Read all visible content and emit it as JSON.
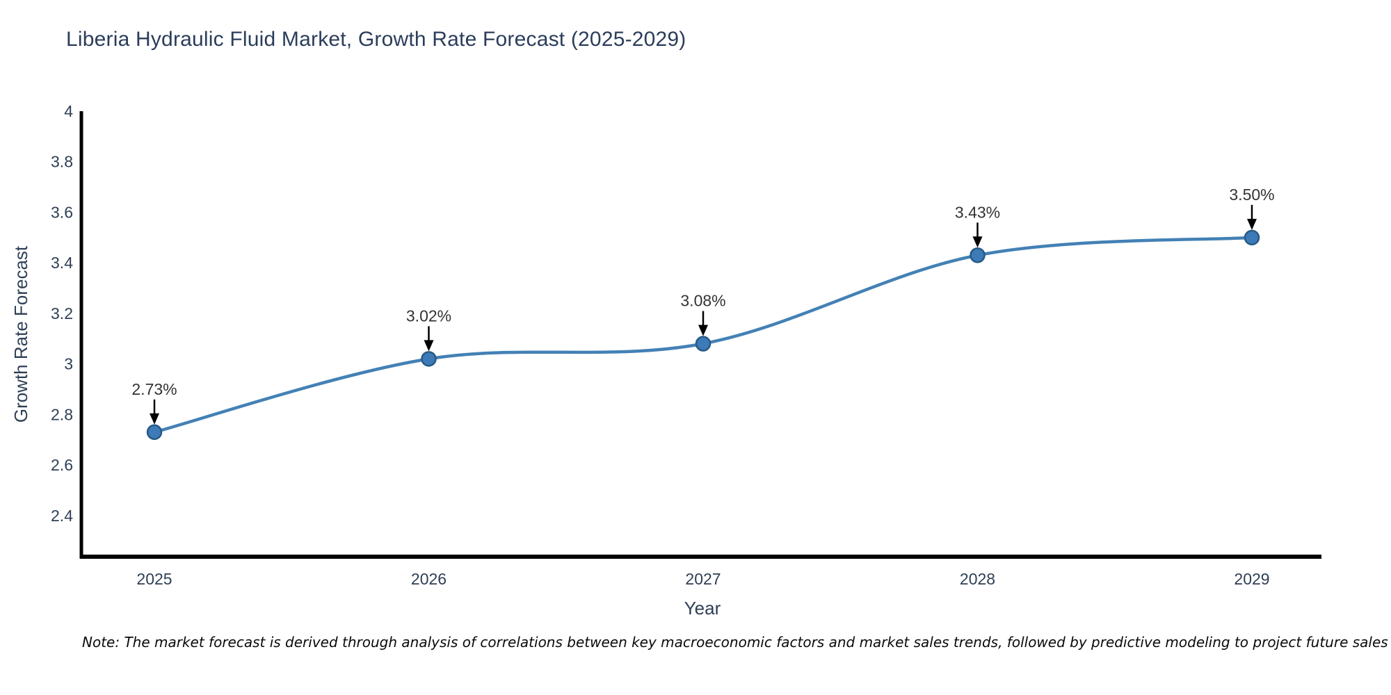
{
  "page": {
    "note": "Note: The market forecast is derived through analysis of correlations between key macroeconomic factors and market sales trends, followed by predictive modeling to project future sales"
  },
  "chart_data": {
    "type": "line",
    "title": "Liberia Hydraulic Fluid Market, Growth Rate Forecast (2025-2029)",
    "xlabel": "Year",
    "ylabel": "Growth Rate Forecast",
    "categories": [
      "2025",
      "2026",
      "2027",
      "2028",
      "2029"
    ],
    "values": [
      2.73,
      3.02,
      3.08,
      3.43,
      3.5
    ],
    "point_labels": [
      "2.73%",
      "3.02%",
      "3.08%",
      "3.43%",
      "3.50%"
    ],
    "yticks": [
      4,
      3.8,
      3.6,
      3.4,
      3.2,
      3,
      2.8,
      2.6,
      2.4
    ],
    "ylim": [
      2.24,
      4
    ],
    "line_shape": "spline",
    "grid": false,
    "legend": "none",
    "colors": {
      "line": "#4381b5",
      "marker_fill": "#3d7ab8",
      "marker_edge": "#275a84",
      "arrow": "#000000",
      "axis": "#000000",
      "title_text": "#2b3d5b",
      "tick_text": "#2e3f55",
      "annotation_text": "#333333"
    }
  }
}
